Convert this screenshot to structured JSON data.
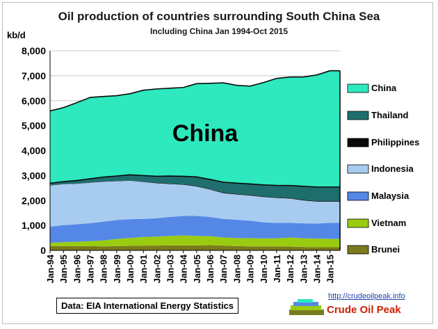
{
  "chart_data": {
    "type": "area",
    "stacked": true,
    "title": "Oil production of countries surrounding South China Sea",
    "subtitle": "Including China     Jan 1994-Oct 2015",
    "ylabel": "kb/d",
    "ylim": [
      0,
      8000
    ],
    "yticks": [
      0,
      1000,
      2000,
      3000,
      4000,
      5000,
      6000,
      7000,
      8000
    ],
    "ytick_labels": [
      "0",
      "1,000",
      "2,000",
      "3,000",
      "4,000",
      "5,000",
      "6,000",
      "7,000",
      "8,000"
    ],
    "x_start": 1994.0,
    "x_end": 2015.75,
    "categories": [
      "Jan-94",
      "Jan-95",
      "Jan-96",
      "Jan-97",
      "Jan-98",
      "Jan-99",
      "Jan-00",
      "Jan-01",
      "Jan-02",
      "Jan-03",
      "Jan-04",
      "Jan-05",
      "Jan-06",
      "Jan-07",
      "Jan-08",
      "Jan-09",
      "Jan-10",
      "Jan-11",
      "Jan-12",
      "Jan-13",
      "Jan-14",
      "Jan-15"
    ],
    "series": [
      {
        "name": "Brunei",
        "color": "#7a7a1e",
        "values": [
          170,
          170,
          170,
          170,
          160,
          170,
          180,
          190,
          190,
          200,
          200,
          200,
          210,
          190,
          170,
          160,
          160,
          160,
          155,
          135,
          125,
          125
        ]
      },
      {
        "name": "Vietnam",
        "color": "#99cc11",
        "values": [
          130,
          160,
          180,
          200,
          240,
          290,
          320,
          350,
          360,
          380,
          400,
          380,
          360,
          330,
          320,
          330,
          320,
          320,
          360,
          350,
          350,
          340
        ]
      },
      {
        "name": "Malaysia",
        "color": "#5588e6",
        "values": [
          650,
          680,
          700,
          720,
          750,
          760,
          750,
          720,
          740,
          760,
          780,
          800,
          770,
          740,
          740,
          700,
          650,
          620,
          590,
          600,
          600,
          640
        ]
      },
      {
        "name": "Indonesia",
        "color": "#a8ccf0",
        "values": [
          1650,
          1640,
          1620,
          1620,
          1600,
          1550,
          1540,
          1480,
          1400,
          1320,
          1250,
          1180,
          1100,
          1030,
          1010,
          1010,
          1010,
          1000,
          970,
          920,
          880,
          850
        ]
      },
      {
        "name": "Philippines",
        "color": "#0a0a0a",
        "values": [
          10,
          10,
          10,
          10,
          10,
          10,
          10,
          10,
          20,
          20,
          20,
          25,
          25,
          25,
          25,
          25,
          25,
          25,
          25,
          25,
          25,
          25
        ]
      },
      {
        "name": "Thailand",
        "color": "#1f6e6e",
        "values": [
          80,
          100,
          120,
          150,
          180,
          200,
          230,
          250,
          260,
          300,
          320,
          360,
          380,
          420,
          430,
          440,
          460,
          480,
          500,
          540,
          560,
          560
        ]
      },
      {
        "name": "China",
        "color": "#2ee8be",
        "values": [
          2900,
          2960,
          3120,
          3260,
          3230,
          3220,
          3250,
          3420,
          3500,
          3520,
          3560,
          3740,
          3850,
          3980,
          3920,
          3920,
          4100,
          4290,
          4350,
          4380,
          4490,
          4660
        ]
      }
    ],
    "chart_label": "China",
    "legend_position": "right",
    "legend": [
      "China",
      "Thailand",
      "Philippines",
      "Indonesia",
      "Malaysia",
      "Vietnam",
      "Brunei"
    ]
  },
  "source_note": "Data: EIA International Energy Statistics",
  "url": "http://crudeoilpeak.info",
  "brand": "Crude Oil Peak",
  "colors": {
    "text": "#1a1a1a",
    "grid": "#c8c8c8",
    "outline": "#0a0a0a",
    "brand": "#cc2200",
    "url": "#1e3fa8"
  }
}
